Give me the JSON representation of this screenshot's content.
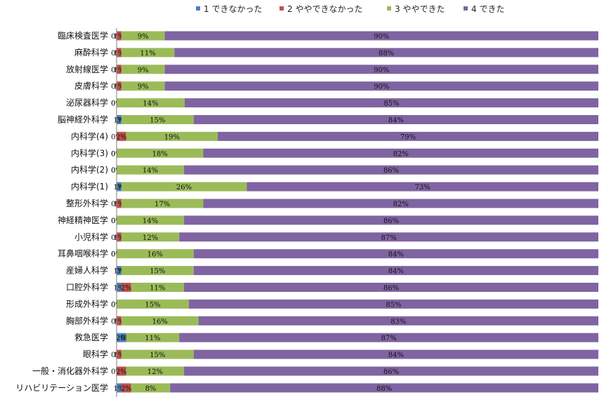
{
  "chart_data": {
    "type": "bar",
    "orientation": "horizontal",
    "stacked": "percent",
    "title": "",
    "xlabel": "",
    "ylabel": "",
    "xlim": [
      0,
      100
    ],
    "grid": false,
    "legend_position": "top",
    "categories": [
      "臨床検査医学",
      "麻酔科学",
      "放射線医学",
      "皮膚科学",
      "泌尿器科学",
      "脳神経外科学",
      "内科学(4)",
      "内科学(3)",
      "内科学(2)",
      "内科学(1)",
      "整形外科学",
      "神経精神医学",
      "小児科学",
      "耳鼻咽喉科学",
      "産婦人科学",
      "口腔外科学",
      "形成外科学",
      "胸部外科学",
      "救急医学",
      "眼科学",
      "一般・消化器外科学",
      "リハビリテーション医学"
    ],
    "series": [
      {
        "name": "1 できなかった",
        "color": "#4F81BD",
        "values": [
          0,
          0,
          0,
          0,
          0,
          1,
          0,
          0,
          0,
          1,
          0,
          0,
          0,
          0,
          1,
          1,
          0,
          0,
          2,
          0,
          0,
          1
        ],
        "labels": [
          "0%",
          "0%",
          "0%",
          "0%",
          "0%",
          "1%",
          "0%",
          "0%",
          "0%",
          "1%",
          "0%",
          "0%",
          "0%",
          "0%",
          "1%",
          "1%",
          "0%",
          "0%",
          "2%",
          "0%",
          "0%",
          "1%"
        ]
      },
      {
        "name": "2 ややできなかった",
        "color": "#C0504D",
        "values": [
          1,
          1,
          1,
          1,
          0,
          0,
          2,
          0,
          0,
          0,
          1,
          0,
          1,
          0,
          0,
          2,
          0,
          1,
          0,
          1,
          2,
          2
        ],
        "labels": [
          "1%",
          "1%",
          "1%",
          "1%",
          "0%",
          "0%",
          "2%",
          "0%",
          "0%",
          "0%",
          "1%",
          "0%",
          "1%",
          "0%",
          "0%",
          "2%",
          "0%",
          "1%",
          "0%",
          "1%",
          "2%",
          "2%"
        ]
      },
      {
        "name": "3 ややできた",
        "color": "#9BBB59",
        "values": [
          9,
          11,
          9,
          9,
          14,
          15,
          19,
          18,
          14,
          26,
          17,
          14,
          12,
          16,
          15,
          11,
          15,
          16,
          11,
          15,
          12,
          8
        ],
        "labels": [
          "9%",
          "11%",
          "9%",
          "9%",
          "14%",
          "15%",
          "19%",
          "18%",
          "14%",
          "26%",
          "17%",
          "14%",
          "12%",
          "16%",
          "15%",
          "11%",
          "15%",
          "16%",
          "11%",
          "15%",
          "12%",
          "8%"
        ]
      },
      {
        "name": "4 できた",
        "color": "#8064A2",
        "values": [
          90,
          88,
          90,
          90,
          85,
          84,
          79,
          82,
          86,
          73,
          82,
          86,
          87,
          84,
          84,
          86,
          85,
          83,
          87,
          84,
          86,
          88
        ],
        "labels": [
          "90%",
          "88%",
          "90%",
          "90%",
          "85%",
          "84%",
          "79%",
          "82%",
          "86%",
          "73%",
          "82%",
          "86%",
          "87%",
          "84%",
          "84%",
          "86%",
          "85%",
          "83%",
          "87%",
          "84%",
          "86%",
          "88%"
        ]
      }
    ]
  }
}
